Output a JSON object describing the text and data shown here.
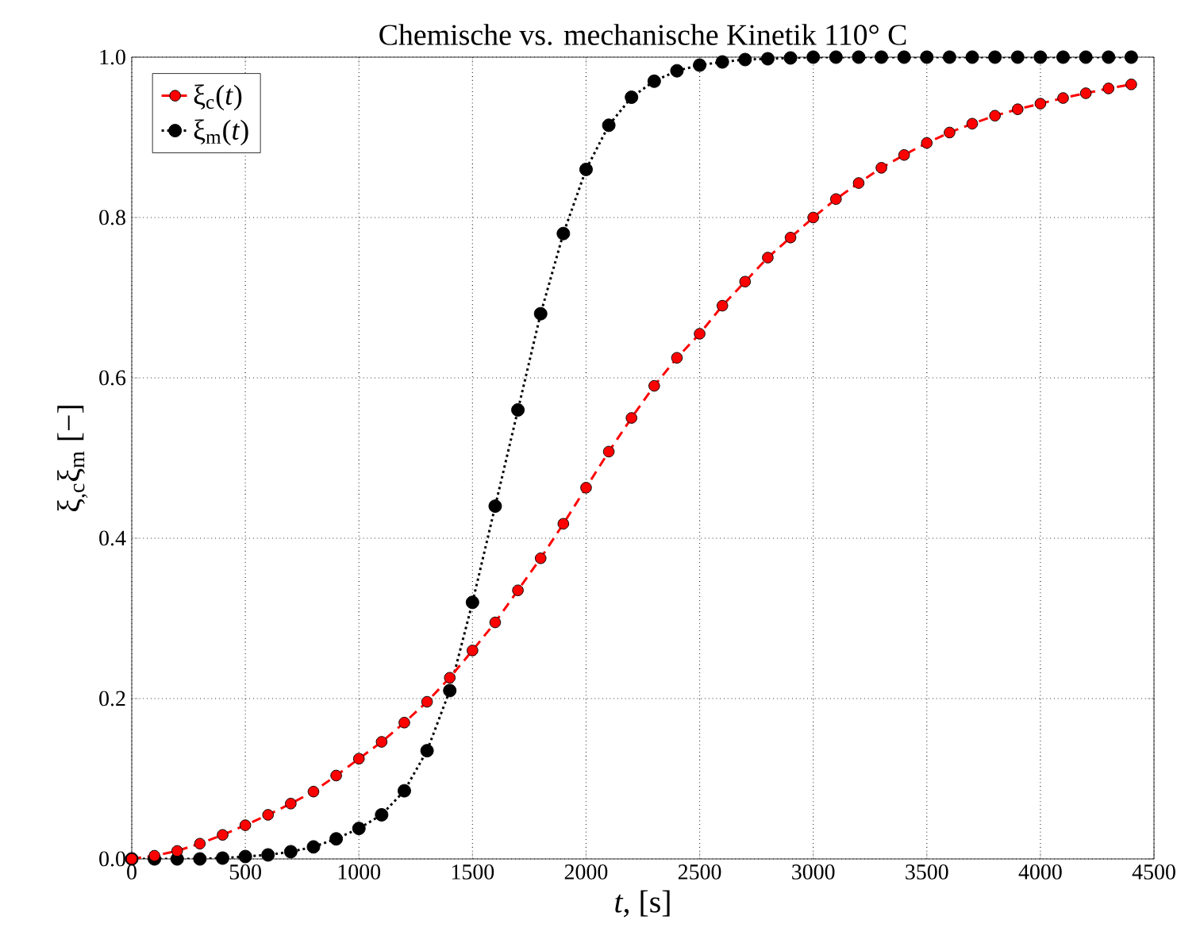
{
  "chart_data": {
    "type": "line",
    "title": "Chemische vs. mechanische Kinetik 110° C",
    "xlabel": "*t*, [s]",
    "ylabel": "ξ$_{,c}$ξ$_{m}$ [−]",
    "xlim": [
      0,
      4500
    ],
    "ylim": [
      0,
      1.0
    ],
    "xticks": [
      0,
      500,
      1000,
      1500,
      2000,
      2500,
      3000,
      3500,
      4000,
      4500
    ],
    "yticks": [
      {
        "value": 0,
        "label": "0.0"
      },
      0.2,
      0.4,
      0.6,
      0.8,
      {
        "value": 1.0,
        "label": "1.0"
      }
    ],
    "grid": true,
    "legend": "top left",
    "marker": "circle",
    "series": [
      {
        "name": "ξ$_{c}$(*t*)",
        "color": "#ff0000",
        "line_style": "dashed",
        "x": [
          0,
          100,
          200,
          300,
          400,
          500,
          600,
          700,
          800,
          900,
          1000,
          1100,
          1200,
          1300,
          1400,
          1500,
          1600,
          1700,
          1800,
          1900,
          2000,
          2100,
          2200,
          2300,
          2400,
          2500,
          2600,
          2700,
          2800,
          2900,
          3000,
          3100,
          3200,
          3300,
          3400,
          3500,
          3600,
          3700,
          3800,
          3900,
          4000,
          4100,
          4200,
          4300,
          4400
        ],
        "values": [
          0,
          0.004,
          0.01,
          0.019,
          0.03,
          0.042,
          0.055,
          0.069,
          0.084,
          0.104,
          0.125,
          0.146,
          0.17,
          0.196,
          0.226,
          0.26,
          0.295,
          0.335,
          0.375,
          0.418,
          0.463,
          0.508,
          0.55,
          0.59,
          0.625,
          0.655,
          0.69,
          0.72,
          0.75,
          0.775,
          0.8,
          0.823,
          0.843,
          0.862,
          0.878,
          0.893,
          0.906,
          0.917,
          0.927,
          0.935,
          0.942,
          0.949,
          0.955,
          0.961,
          0.966
        ]
      },
      {
        "name": "ξ$_{m}$(*t*)",
        "color": "#000000",
        "line_style": "dotted",
        "x": [
          0,
          100,
          200,
          300,
          400,
          500,
          600,
          700,
          800,
          900,
          1000,
          1100,
          1200,
          1300,
          1400,
          1500,
          1600,
          1700,
          1800,
          1900,
          2000,
          2100,
          2200,
          2300,
          2400,
          2500,
          2600,
          2700,
          2800,
          2900,
          3000,
          3100,
          3200,
          3300,
          3400,
          3500,
          3600,
          3700,
          3800,
          3900,
          4000,
          4100,
          4200,
          4300,
          4400
        ],
        "values": [
          0,
          0,
          0,
          0,
          0.001,
          0.003,
          0.005,
          0.009,
          0.015,
          0.025,
          0.038,
          0.055,
          0.085,
          0.135,
          0.21,
          0.32,
          0.44,
          0.56,
          0.68,
          0.78,
          0.86,
          0.915,
          0.95,
          0.97,
          0.983,
          0.99,
          0.994,
          0.997,
          0.998,
          0.999,
          1.0,
          1.0,
          1.0,
          1.0,
          1.0,
          1.0,
          1.0,
          1.0,
          1.0,
          1.0,
          1.0,
          1.0,
          1.0,
          1.0,
          1.0
        ]
      }
    ]
  }
}
